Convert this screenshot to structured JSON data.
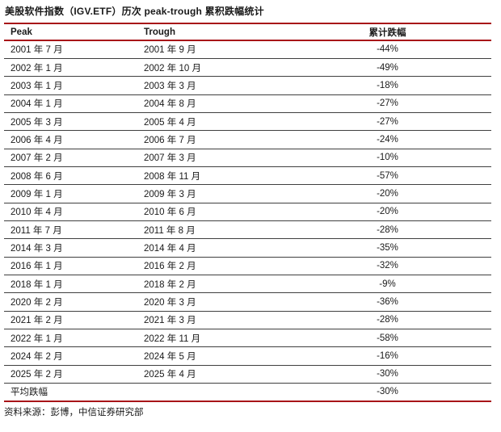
{
  "title": "美股软件指数（IGV.ETF）历次 peak-trough 累积跌幅统计",
  "table": {
    "columns": [
      "Peak",
      "Trough",
      "累计跌幅"
    ],
    "rows": [
      [
        "2001 年 7 月",
        "2001 年 9 月",
        "-44%"
      ],
      [
        "2002 年 1 月",
        "2002 年 10 月",
        "-49%"
      ],
      [
        "2003 年 1 月",
        "2003 年 3 月",
        "-18%"
      ],
      [
        "2004 年 1 月",
        "2004 年 8 月",
        "-27%"
      ],
      [
        "2005 年 3 月",
        "2005 年 4 月",
        "-27%"
      ],
      [
        "2006 年 4 月",
        "2006 年 7 月",
        "-24%"
      ],
      [
        "2007 年 2 月",
        "2007 年 3 月",
        "-10%"
      ],
      [
        "2008 年 6 月",
        "2008 年 11 月",
        "-57%"
      ],
      [
        "2009 年 1 月",
        "2009 年 3 月",
        "-20%"
      ],
      [
        "2010 年 4 月",
        "2010 年 6 月",
        "-20%"
      ],
      [
        "2011 年 7 月",
        "2011 年 8 月",
        "-28%"
      ],
      [
        "2014 年 3 月",
        "2014 年 4 月",
        "-35%"
      ],
      [
        "2016 年 1 月",
        "2016 年 2 月",
        "-32%"
      ],
      [
        "2018 年 1 月",
        "2018 年 2 月",
        "-9%"
      ],
      [
        "2020 年 2 月",
        "2020 年 3 月",
        "-36%"
      ],
      [
        "2021 年 2 月",
        "2021 年 3 月",
        "-28%"
      ],
      [
        "2022 年 1 月",
        "2022 年 11 月",
        "-58%"
      ],
      [
        "2024 年 2 月",
        "2024 年 5 月",
        "-16%"
      ],
      [
        "2025 年 2 月",
        "2025 年 4 月",
        "-30%"
      ]
    ],
    "summary": {
      "label": "平均跌幅",
      "trough": "",
      "drawdown": "-30%"
    }
  },
  "source": "资料来源：彭博，中信证券研究部",
  "colors": {
    "accent": "#A81418",
    "row_line": "#3f3f3f",
    "text": "#1a1a1a"
  }
}
